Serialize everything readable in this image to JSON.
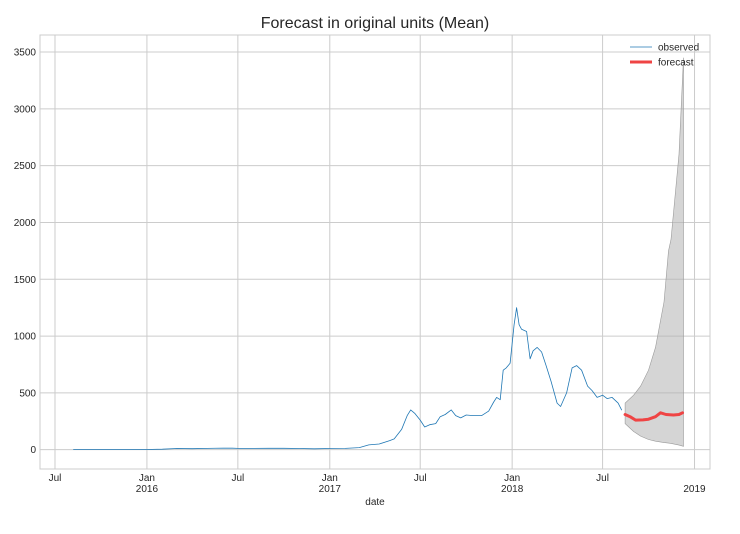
{
  "chart_data": {
    "type": "line",
    "title": "Forecast in original units (Mean)",
    "xlabel": "date",
    "ylabel": "",
    "x_range": [
      "2015-06-01",
      "2019-02-01"
    ],
    "ylim": [
      -170,
      3650
    ],
    "y_ticks": [
      0,
      500,
      1000,
      1500,
      2000,
      2500,
      3000,
      3500
    ],
    "x_ticks": [
      {
        "date": "2015-07-01",
        "label": "Jul",
        "sublabel": ""
      },
      {
        "date": "2016-01-01",
        "label": "Jan",
        "sublabel": "2016"
      },
      {
        "date": "2016-07-01",
        "label": "Jul",
        "sublabel": ""
      },
      {
        "date": "2017-01-01",
        "label": "Jan",
        "sublabel": "2017"
      },
      {
        "date": "2017-07-01",
        "label": "Jul",
        "sublabel": ""
      },
      {
        "date": "2018-01-01",
        "label": "Jan",
        "sublabel": "2018"
      },
      {
        "date": "2018-07-01",
        "label": "Jul",
        "sublabel": ""
      },
      {
        "date": "2019-01-01",
        "label": "",
        "sublabel": "2019"
      }
    ],
    "grid": true,
    "legend": {
      "position": "top-right",
      "entries": [
        "observed",
        "forecast"
      ]
    },
    "colors": {
      "observed": "#1f77b4",
      "forecast": "#ef4444",
      "band": "#b3b3b3",
      "grid": "#cccccc"
    },
    "series": [
      {
        "name": "observed",
        "points": [
          [
            "2015-08-07",
            1
          ],
          [
            "2015-09-01",
            1
          ],
          [
            "2015-10-01",
            1
          ],
          [
            "2015-11-01",
            1
          ],
          [
            "2015-12-01",
            1
          ],
          [
            "2016-01-01",
            2
          ],
          [
            "2016-02-01",
            4
          ],
          [
            "2016-03-01",
            10
          ],
          [
            "2016-04-01",
            9
          ],
          [
            "2016-05-01",
            11
          ],
          [
            "2016-06-01",
            14
          ],
          [
            "2016-06-20",
            13
          ],
          [
            "2016-07-01",
            11
          ],
          [
            "2016-08-01",
            11
          ],
          [
            "2016-09-01",
            12
          ],
          [
            "2016-10-01",
            12
          ],
          [
            "2016-11-01",
            10
          ],
          [
            "2016-12-01",
            8
          ],
          [
            "2017-01-01",
            10
          ],
          [
            "2017-02-01",
            11
          ],
          [
            "2017-03-01",
            18
          ],
          [
            "2017-03-20",
            42
          ],
          [
            "2017-04-10",
            50
          ],
          [
            "2017-05-01",
            80
          ],
          [
            "2017-05-10",
            95
          ],
          [
            "2017-05-25",
            180
          ],
          [
            "2017-06-05",
            300
          ],
          [
            "2017-06-12",
            350
          ],
          [
            "2017-06-20",
            320
          ],
          [
            "2017-07-01",
            260
          ],
          [
            "2017-07-10",
            200
          ],
          [
            "2017-07-20",
            220
          ],
          [
            "2017-08-01",
            230
          ],
          [
            "2017-08-10",
            290
          ],
          [
            "2017-08-20",
            310
          ],
          [
            "2017-09-01",
            350
          ],
          [
            "2017-09-10",
            300
          ],
          [
            "2017-09-20",
            280
          ],
          [
            "2017-10-01",
            305
          ],
          [
            "2017-10-15",
            300
          ],
          [
            "2017-11-01",
            300
          ],
          [
            "2017-11-15",
            340
          ],
          [
            "2017-11-25",
            420
          ],
          [
            "2017-12-01",
            460
          ],
          [
            "2017-12-08",
            440
          ],
          [
            "2017-12-14",
            700
          ],
          [
            "2017-12-20",
            720
          ],
          [
            "2017-12-28",
            760
          ],
          [
            "2018-01-05",
            1100
          ],
          [
            "2018-01-10",
            1250
          ],
          [
            "2018-01-15",
            1100
          ],
          [
            "2018-01-20",
            1060
          ],
          [
            "2018-01-30",
            1040
          ],
          [
            "2018-02-06",
            800
          ],
          [
            "2018-02-12",
            870
          ],
          [
            "2018-02-20",
            900
          ],
          [
            "2018-03-01",
            860
          ],
          [
            "2018-03-10",
            740
          ],
          [
            "2018-03-20",
            600
          ],
          [
            "2018-04-01",
            410
          ],
          [
            "2018-04-08",
            380
          ],
          [
            "2018-04-20",
            500
          ],
          [
            "2018-05-01",
            720
          ],
          [
            "2018-05-10",
            740
          ],
          [
            "2018-05-20",
            700
          ],
          [
            "2018-06-01",
            560
          ],
          [
            "2018-06-10",
            520
          ],
          [
            "2018-06-20",
            460
          ],
          [
            "2018-07-01",
            480
          ],
          [
            "2018-07-10",
            450
          ],
          [
            "2018-07-20",
            460
          ],
          [
            "2018-08-01",
            410
          ],
          [
            "2018-08-08",
            350
          ]
        ]
      },
      {
        "name": "forecast",
        "points": [
          [
            "2018-08-15",
            310
          ],
          [
            "2018-08-25",
            290
          ],
          [
            "2018-09-05",
            260
          ],
          [
            "2018-09-20",
            262
          ],
          [
            "2018-10-01",
            268
          ],
          [
            "2018-10-15",
            290
          ],
          [
            "2018-10-25",
            325
          ],
          [
            "2018-11-05",
            310
          ],
          [
            "2018-11-20",
            305
          ],
          [
            "2018-12-01",
            310
          ],
          [
            "2018-12-08",
            325
          ]
        ]
      }
    ],
    "confidence_band": {
      "name": "forecast interval",
      "points": [
        [
          "2018-08-15",
          230,
          410
        ],
        [
          "2018-09-01",
          160,
          480
        ],
        [
          "2018-09-15",
          120,
          560
        ],
        [
          "2018-10-01",
          90,
          700
        ],
        [
          "2018-10-15",
          75,
          900
        ],
        [
          "2018-11-01",
          62,
          1300
        ],
        [
          "2018-11-10",
          58,
          1750
        ],
        [
          "2018-11-15",
          55,
          1850
        ],
        [
          "2018-12-01",
          40,
          2600
        ],
        [
          "2018-12-10",
          30,
          3450
        ]
      ]
    }
  }
}
